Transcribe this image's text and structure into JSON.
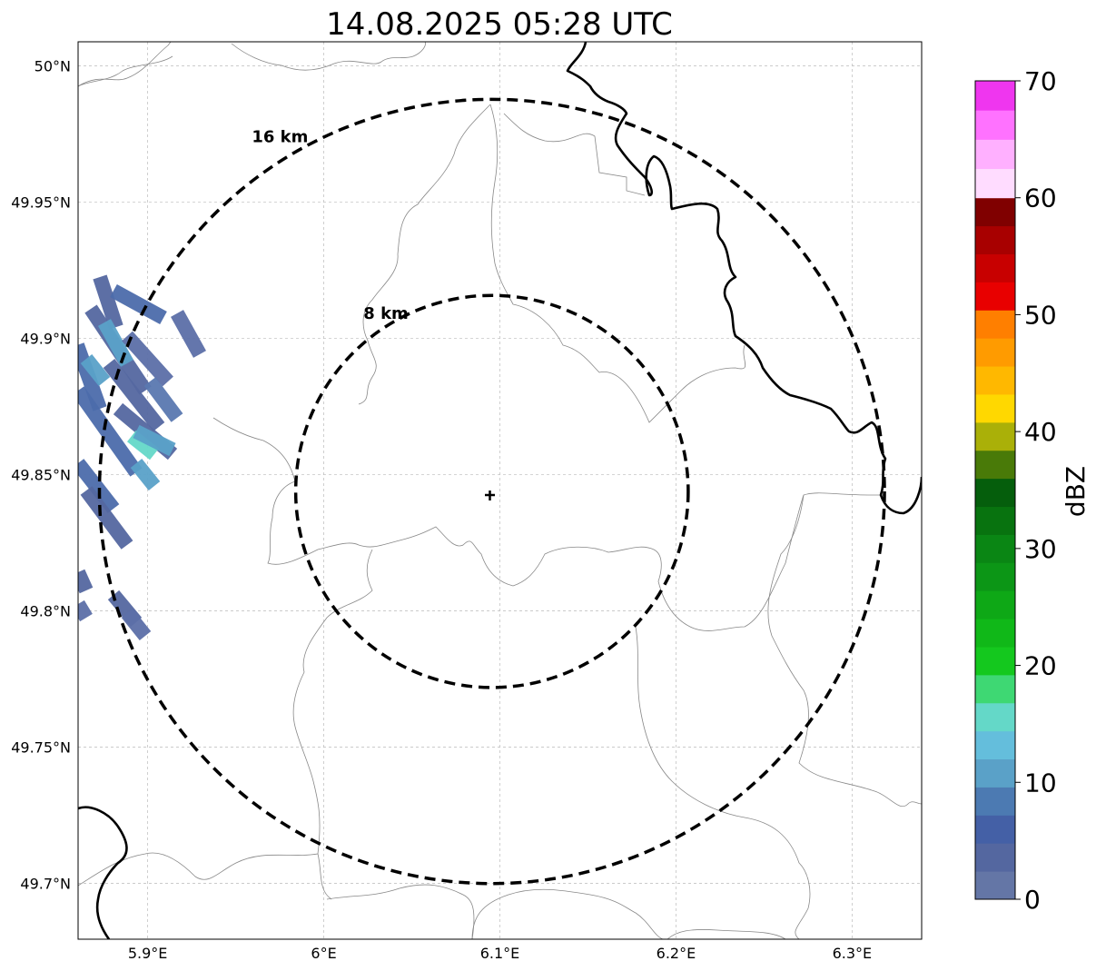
{
  "title": "14.08.2025 05:28 UTC",
  "map": {
    "lon_range": [
      5.8605,
      6.3395
    ],
    "lat_range": [
      49.6795,
      50.0088
    ],
    "radar_site": {
      "lon": 6.0955,
      "lat": 49.8438
    },
    "lon_ticks": [
      {
        "value": 5.9,
        "label": "5.9°E"
      },
      {
        "value": 6.0,
        "label": "6°E"
      },
      {
        "value": 6.1,
        "label": "6.1°E"
      },
      {
        "value": 6.2,
        "label": "6.2°E"
      },
      {
        "value": 6.3,
        "label": "6.3°E"
      }
    ],
    "lat_ticks": [
      {
        "value": 50.0,
        "label": "50°N"
      },
      {
        "value": 49.95,
        "label": "49.95°N"
      },
      {
        "value": 49.9,
        "label": "49.9°N"
      },
      {
        "value": 49.85,
        "label": "49.85°N"
      },
      {
        "value": 49.8,
        "label": "49.8°N"
      },
      {
        "value": 49.75,
        "label": "49.75°N"
      },
      {
        "value": 49.7,
        "label": "49.7°N"
      }
    ],
    "range_rings": [
      {
        "radius_km": 8,
        "label": "8 km"
      },
      {
        "radius_km": 16,
        "label": "16 km"
      }
    ],
    "gridlines": true
  },
  "colorbar": {
    "unit": "dBZ",
    "min": 0,
    "max": 70,
    "tick_values": [
      0,
      10,
      20,
      30,
      40,
      50,
      60,
      70
    ],
    "tick_labels": [
      "0",
      "10",
      "20",
      "30",
      "40",
      "50",
      "60",
      "70"
    ],
    "colors": [
      "#6476a6",
      "#5467a0",
      "#4460a6",
      "#4c7ab2",
      "#5aa1c8",
      "#64bedc",
      "#64d8c8",
      "#3ed873",
      "#14c81e",
      "#10b818",
      "#0ea816",
      "#0c9616",
      "#0a8614",
      "#08730f",
      "#055e0c",
      "#497a08",
      "#aab008",
      "#ffd800",
      "#ffb800",
      "#ff9b00",
      "#ff7f00",
      "#e80000",
      "#c80000",
      "#a80000",
      "#800000",
      "#ffdcff",
      "#ffb0ff",
      "#ff72ff",
      "#ef36ef"
    ]
  },
  "colors": {
    "border_major": "#000000",
    "border_minor": "#888888",
    "ring": "#000000",
    "grid": "#bbbbbb"
  }
}
